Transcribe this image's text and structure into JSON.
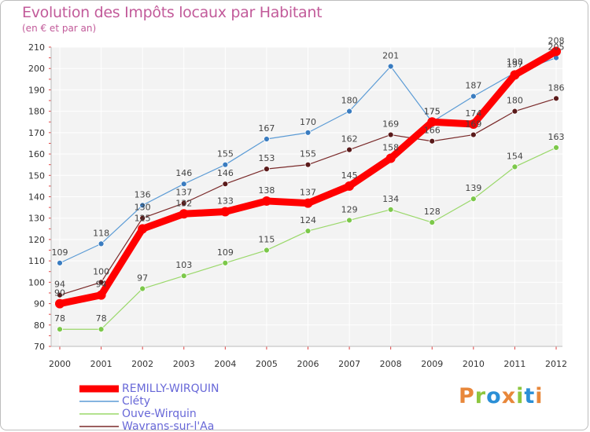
{
  "header": {
    "title": "Evolution des Impôts locaux par Habitant",
    "subtitle": "(en € et par an)"
  },
  "brand": {
    "letters": [
      "P",
      "r",
      "o",
      "x",
      "i",
      "t",
      "i"
    ],
    "colors": [
      "#e8873a",
      "#8dc63f",
      "#2b8fd6",
      "#e8873a",
      "#8dc63f",
      "#2b8fd6",
      "#e8873a"
    ]
  },
  "chart_data": {
    "type": "line",
    "title": "Evolution des Impôts locaux par Habitant",
    "subtitle": "(en € et par an)",
    "xlabel": "",
    "ylabel": "",
    "categories": [
      "2000",
      "2001",
      "2002",
      "2003",
      "2004",
      "2005",
      "2006",
      "2007",
      "2008",
      "2009",
      "2010",
      "2011",
      "2012"
    ],
    "ylim": [
      70,
      210
    ],
    "yticks": [
      "70",
      "80",
      "90",
      "100",
      "110",
      "120",
      "130",
      "140",
      "150",
      "160",
      "170",
      "180",
      "190",
      "200",
      "210"
    ],
    "grid": true,
    "legend_position": "bottom-left",
    "series": [
      {
        "name": "REMILLY-WIRQUIN",
        "color": "#ff0000",
        "values": [
          90,
          94,
          125,
          132,
          133,
          138,
          137,
          145,
          158,
          175,
          174,
          197,
          208
        ]
      },
      {
        "name": "Cléty",
        "color": "#5b9bd5",
        "values": [
          109,
          118,
          136,
          146,
          155,
          167,
          170,
          180,
          201,
          175,
          187,
          198,
          205
        ]
      },
      {
        "name": "Ouve-Wirquin",
        "color": "#9ad86a",
        "values": [
          78,
          78,
          97,
          103,
          109,
          115,
          124,
          129,
          134,
          128,
          139,
          154,
          163
        ]
      },
      {
        "name": "Wavrans-sur-l'Aa",
        "color": "#7a2a2a",
        "values": [
          94,
          100,
          130,
          137,
          146,
          153,
          155,
          162,
          169,
          166,
          169,
          180,
          186
        ]
      }
    ]
  }
}
